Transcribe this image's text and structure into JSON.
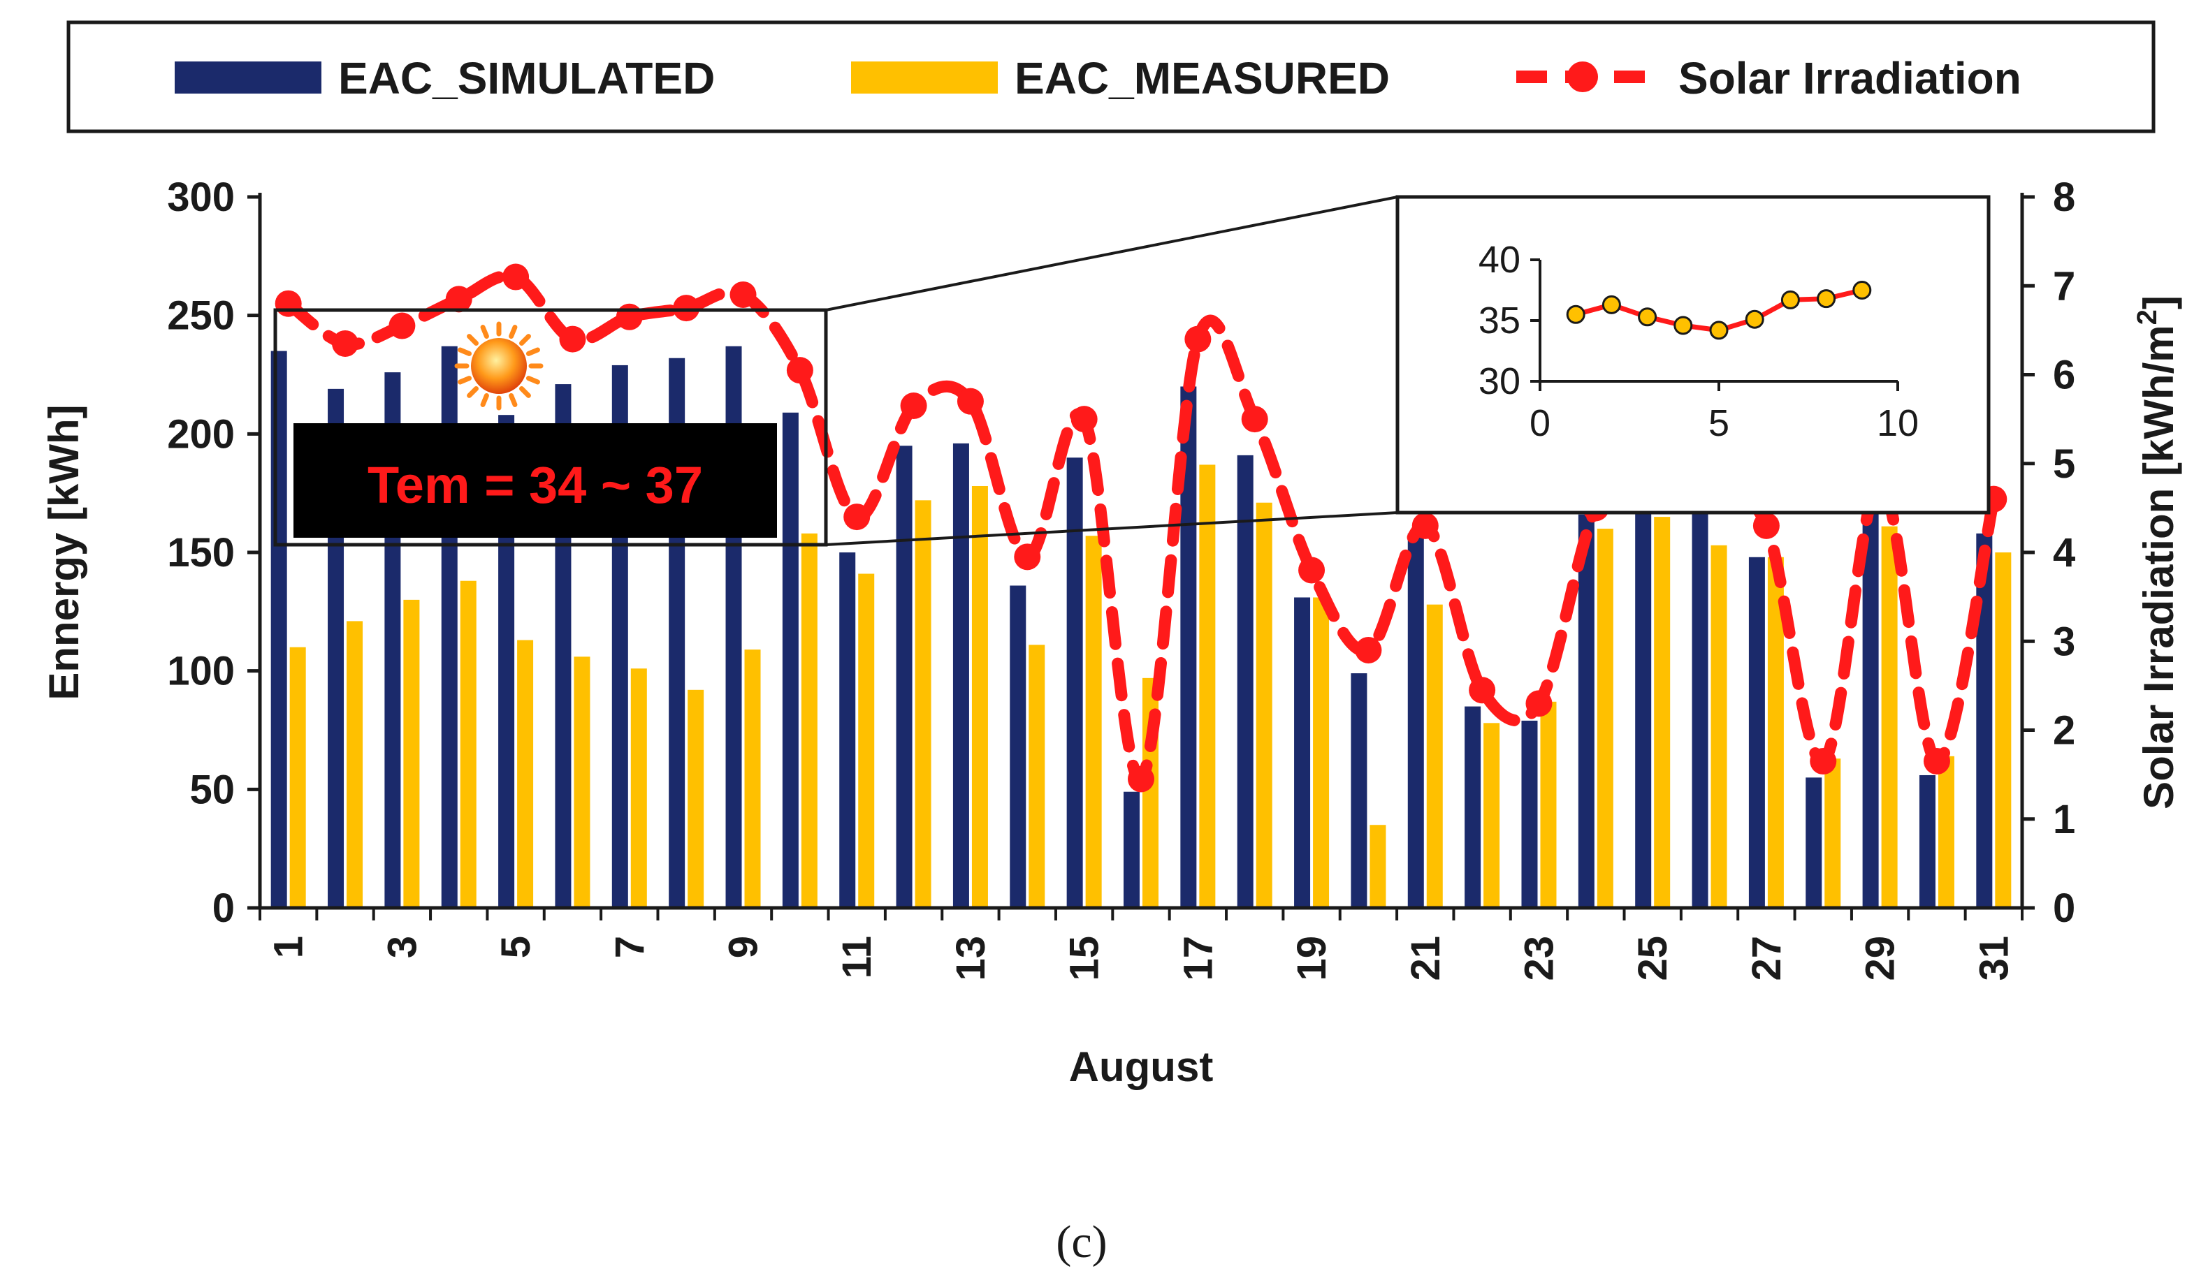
{
  "chart_data": {
    "type": "bar",
    "xlabel": "August",
    "ylabel": "Ennergy [kWh]",
    "y2label": "Solar Irradiation [kWh/m2]",
    "y2label_unit_base": "Solar Irradiation [kWh/m",
    "y2label_unit_exp": "2",
    "y2label_unit_close": "]",
    "ylim": [
      0,
      300
    ],
    "y2lim": [
      0,
      8
    ],
    "yticks": [
      0,
      50,
      100,
      150,
      200,
      250,
      300
    ],
    "y2ticks": [
      0,
      1,
      2,
      3,
      4,
      5,
      6,
      7,
      8
    ],
    "categories": [
      1,
      2,
      3,
      4,
      5,
      6,
      7,
      8,
      9,
      10,
      11,
      12,
      13,
      14,
      15,
      16,
      17,
      18,
      19,
      20,
      21,
      22,
      23,
      24,
      25,
      26,
      27,
      28,
      29,
      30,
      31
    ],
    "xtick_labels": [
      "1",
      "3",
      "5",
      "7",
      "9",
      "11",
      "13",
      "15",
      "17",
      "19",
      "21",
      "23",
      "25",
      "27",
      "29",
      "31"
    ],
    "legend_position": "top",
    "grid": false,
    "series": [
      {
        "name": "EAC_SIMULATED",
        "kind": "bar",
        "axis": "left",
        "color": "#1b2a6b",
        "values": [
          235,
          219,
          226,
          237,
          208,
          221,
          229,
          232,
          237,
          209,
          150,
          195,
          196,
          136,
          190,
          49,
          220,
          191,
          131,
          99,
          158,
          85,
          79,
          166,
          168,
          172,
          148,
          55,
          168,
          56,
          158
        ]
      },
      {
        "name": "EAC_MEASURED",
        "kind": "bar",
        "axis": "left",
        "color": "#ffc000",
        "values": [
          110,
          121,
          130,
          138,
          113,
          106,
          101,
          92,
          109,
          158,
          141,
          172,
          178,
          111,
          157,
          97,
          187,
          171,
          131,
          35,
          128,
          78,
          87,
          160,
          165,
          153,
          148,
          63,
          161,
          64,
          150
        ]
      },
      {
        "name": "Solar Irradiation",
        "kind": "line",
        "axis": "right",
        "color": "#ff1a1a",
        "values": [
          6.8,
          6.35,
          6.55,
          6.85,
          7.1,
          6.4,
          6.65,
          6.75,
          6.9,
          6.05,
          4.4,
          5.65,
          5.7,
          3.95,
          5.5,
          1.45,
          6.4,
          5.5,
          3.8,
          2.9,
          4.3,
          2.45,
          2.3,
          4.5,
          5.1,
          4.7,
          4.3,
          1.65,
          4.8,
          1.65,
          4.6
        ]
      }
    ],
    "inset": {
      "x": [
        1,
        2,
        3,
        4,
        5,
        6,
        7,
        8,
        9
      ],
      "values": [
        35.5,
        36.3,
        35.3,
        34.6,
        34.2,
        35.1,
        36.7,
        36.8,
        37.5
      ],
      "xlim": [
        0,
        10
      ],
      "ylim": [
        30,
        40
      ],
      "xticks": [
        0,
        5,
        10
      ],
      "yticks": [
        30,
        35,
        40
      ],
      "line_color": "#ff1a1a",
      "marker_color": "#ffc000"
    },
    "annotation": {
      "text": "Tem = 34 ~ 37",
      "icon": "sun-icon",
      "text_color": "#ff1a1a",
      "box_color": "#000000"
    },
    "panel_label": "(c)"
  }
}
